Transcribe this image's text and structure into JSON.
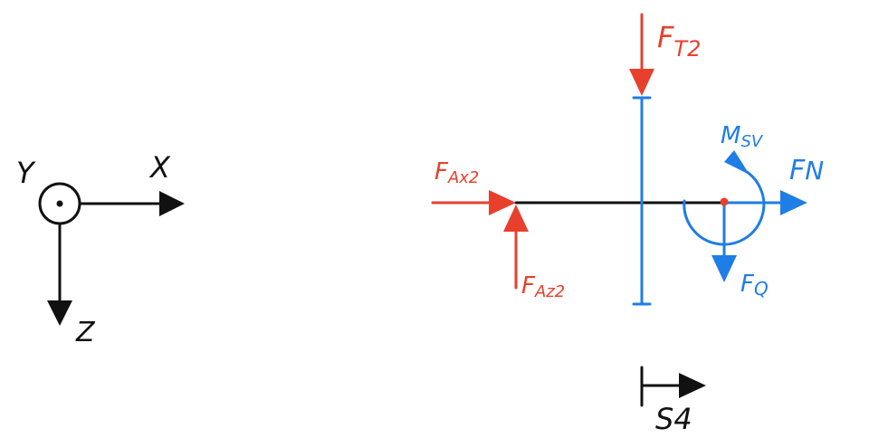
{
  "colors": {
    "black": "#111111",
    "red": "#e8402c",
    "blue": "#1f7de6"
  },
  "coordinate_system": {
    "y_label": "Y",
    "x_label": "X",
    "z_label": "Z"
  },
  "forces": {
    "ft2_main": "F",
    "ft2_sub": "T2",
    "fax2_main": "F",
    "fax2_sub": "Ax2",
    "faz2_main": "F",
    "faz2_sub": "Az2",
    "msv_main": "M",
    "msv_sub": "SV",
    "fn_main": "F",
    "fn_sub": "N",
    "fq_main": "F",
    "fq_sub": "Q"
  },
  "cut": {
    "label": "S4"
  }
}
